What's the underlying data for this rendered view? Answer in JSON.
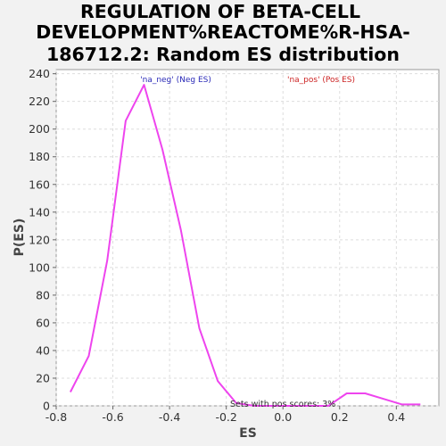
{
  "chart_data": {
    "type": "line",
    "title": [
      "REGULATION OF BETA-CELL",
      "DEVELOPMENT%REACTOME%R-HSA-",
      "186712.2: Random ES distribution"
    ],
    "xlabel": "ES",
    "ylabel": "P(ES)",
    "xlim": [
      -0.8,
      0.55
    ],
    "ylim": [
      0,
      243
    ],
    "x_ticks": [
      "-0.8",
      "-0.6",
      "-0.4",
      "-0.2",
      "0.0",
      "0.2",
      "0.4"
    ],
    "x_tick_values": [
      -0.8,
      -0.6,
      -0.4,
      -0.2,
      0.0,
      0.2,
      0.4
    ],
    "y_ticks": [
      "0",
      "20",
      "40",
      "60",
      "80",
      "100",
      "120",
      "140",
      "160",
      "180",
      "200",
      "220",
      "240"
    ],
    "y_tick_values": [
      0,
      20,
      40,
      60,
      80,
      100,
      120,
      140,
      160,
      180,
      200,
      220,
      240
    ],
    "grid": true,
    "series": [
      {
        "color": "#ee44ee",
        "x": [
          -0.75,
          -0.685,
          -0.62,
          -0.555,
          -0.49,
          -0.425,
          -0.36,
          -0.295,
          -0.23,
          -0.165,
          -0.1,
          0.16,
          0.225,
          0.29,
          0.355,
          0.42,
          0.485
        ],
        "y": [
          10,
          36,
          105,
          206,
          232,
          185,
          127,
          56,
          18,
          2,
          0,
          0,
          9,
          9,
          5,
          1,
          1
        ]
      }
    ],
    "legend": [
      {
        "label": "'na_neg' (Neg ES)",
        "color": "#2a2ab8"
      },
      {
        "label": "'na_pos' (Pos ES)",
        "color": "#cc2222"
      }
    ],
    "annotation": "Sets with pos scores: 3%"
  }
}
